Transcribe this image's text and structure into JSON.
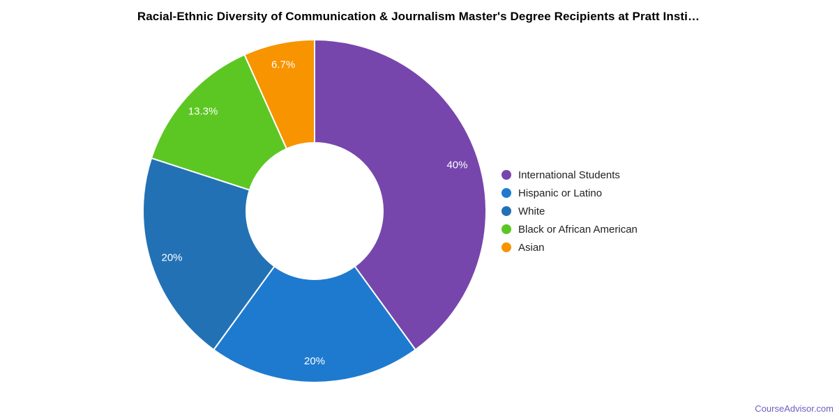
{
  "chart_data": {
    "type": "pie",
    "donut": true,
    "title": "Racial-Ethnic Diversity of Communication & Journalism Master's Degree Recipients at Pratt Insti…",
    "categories": [
      "International Students",
      "Hispanic or Latino",
      "White",
      "Black or African American",
      "Asian"
    ],
    "values": [
      40,
      20,
      20,
      13.3,
      6.7
    ],
    "labels": [
      "40%",
      "20%",
      "20%",
      "13.3%",
      "6.7%"
    ],
    "colors": [
      "#7646AC",
      "#1E7ACF",
      "#2271B5",
      "#5CC722",
      "#F79400"
    ],
    "slice_label_color": "#ffffff",
    "legend_position": "right",
    "start_angle_deg": 0,
    "direction": "clockwise"
  },
  "watermark": {
    "text": "CourseAdvisor.com",
    "color": "#6A5FC4"
  }
}
